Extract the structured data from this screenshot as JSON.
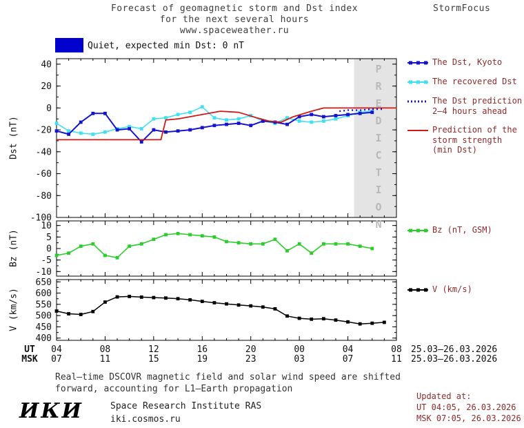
{
  "header": {
    "title_lines": [
      "Forecast of geomagnetic storm and Dst index",
      "for the next several hours",
      "www.spaceweather.ru"
    ],
    "brand": "StormFocus"
  },
  "status": {
    "label": "Quiet, expected min Dst: 0 nT",
    "swatch_color": "#0202cf"
  },
  "prediction_band": {
    "label": "PREDICTION",
    "fill": "#e4e4e4",
    "text_color": "#b9b9b9",
    "start_hour": 28.5,
    "end_hour": 32
  },
  "legend": {
    "text_color": "#8f2a2a",
    "entries": [
      {
        "id": "dst-kyoto",
        "style": "solid-squares",
        "color": "#1414cd",
        "label_lines": [
          "The Dst, Kyoto"
        ]
      },
      {
        "id": "recovered-dst",
        "style": "solid-squares",
        "color": "#3fe0f0",
        "label_lines": [
          "The recovered Dst"
        ]
      },
      {
        "id": "dst-prediction",
        "style": "dotted",
        "color": "#1414cd",
        "label_lines": [
          "The Dst prediction",
          "2–4 hours ahead"
        ]
      },
      {
        "id": "storm-strength-prediction",
        "style": "solid",
        "color": "#d01818",
        "label_lines": [
          "Prediction of the",
          "storm strength",
          "(min Dst)"
        ]
      },
      {
        "id": "bz",
        "style": "solid-squares",
        "color": "#2ccc2c",
        "label_lines": [
          "Bz (nT, GSM)"
        ]
      },
      {
        "id": "v",
        "style": "solid-squares",
        "color": "#000000",
        "label_lines": [
          "V (km/s)"
        ]
      }
    ]
  },
  "axes": {
    "dst_label": "Dst (nT)",
    "bz_label": "Bz (nT)",
    "v_label": "V (km/s)",
    "ut_row_label": "UT",
    "msk_row_label": "MSK",
    "ut_ticks": [
      "04",
      "08",
      "12",
      "16",
      "20",
      "00",
      "04",
      "08"
    ],
    "msk_ticks": [
      "07",
      "11",
      "15",
      "19",
      "23",
      "03",
      "07",
      "11"
    ],
    "ut_date_range": "25.03–26.03.2026",
    "msk_date_range": "25.03–26.03.2026"
  },
  "chart_data": [
    {
      "id": "dst",
      "type": "line",
      "ylabel": "Dst (nT)",
      "ylim": [
        -100,
        45
      ],
      "yticks": [
        40,
        20,
        0,
        -20,
        -40,
        -60,
        -80,
        -100
      ],
      "x_unit": "hour UT (25.03 04:00 = 4, 26.03 08:00 = 32)",
      "show_prediction_band": true,
      "series": [
        {
          "id": "recovered-dst",
          "name": "The recovered Dst",
          "color": "#3fe0f0",
          "marker": "square",
          "width": 1.6,
          "x": [
            4,
            5,
            6,
            7,
            8,
            9,
            10,
            11,
            12,
            13,
            14,
            15,
            16,
            17,
            18,
            19,
            20,
            21,
            22,
            23,
            24,
            25,
            26,
            27,
            28,
            29,
            30
          ],
          "values": [
            -14,
            -21,
            -23,
            -24,
            -22,
            -19,
            -17,
            -19,
            -10,
            -9,
            -6,
            -4,
            1,
            -9,
            -11,
            -10,
            -7,
            -12,
            -14,
            -9,
            -12,
            -13,
            -12,
            -10,
            -7,
            -4,
            -3
          ]
        },
        {
          "id": "dst-kyoto",
          "name": "The Dst, Kyoto",
          "color": "#1414cd",
          "marker": "square",
          "width": 2,
          "x": [
            4,
            5,
            6,
            7,
            8,
            9,
            10,
            11,
            12,
            13,
            14,
            15,
            16,
            17,
            18,
            19,
            20,
            21,
            22,
            23,
            24,
            25,
            26,
            27,
            28,
            29,
            30
          ],
          "values": [
            -21,
            -24,
            -13,
            -5,
            -5,
            -20,
            -19,
            -31,
            -20,
            -22,
            -21,
            -20,
            -18,
            -16,
            -15,
            -14,
            -16,
            -12,
            -13,
            -15,
            -8,
            -6,
            -8,
            -7,
            -6,
            -5,
            -4
          ]
        },
        {
          "id": "storm-strength-prediction",
          "name": "Prediction of the storm strength (min Dst)",
          "color": "#d01818",
          "width": 1.8,
          "x": [
            4,
            12.6,
            13,
            14,
            16,
            17.5,
            19,
            20.5,
            21.5,
            22.5,
            23.5,
            25,
            26,
            32
          ],
          "values": [
            -29,
            -29,
            -11,
            -10,
            -6,
            -3,
            -4,
            -9,
            -12,
            -13,
            -8,
            -3,
            0,
            0
          ]
        },
        {
          "id": "dst-prediction",
          "name": "The Dst prediction 2–4 hours ahead",
          "color": "#1414cd",
          "width": 2.4,
          "dash": "2 4",
          "x": [
            27.3,
            28,
            29,
            30,
            31
          ],
          "values": [
            -3,
            -2,
            -2,
            -1,
            -1
          ]
        }
      ]
    },
    {
      "id": "bz",
      "type": "line",
      "ylabel": "Bz (nT)",
      "ylim": [
        -12,
        12
      ],
      "yticks": [
        10,
        5,
        0,
        -5,
        -10
      ],
      "series": [
        {
          "id": "bz",
          "name": "Bz (nT, GSM)",
          "color": "#2ccc2c",
          "marker": "square",
          "width": 1.6,
          "x": [
            4,
            5,
            6,
            7,
            8,
            9,
            10,
            11,
            12,
            13,
            14,
            15,
            16,
            17,
            18,
            19,
            20,
            21,
            22,
            23,
            24,
            25,
            26,
            27,
            28,
            29,
            30
          ],
          "values": [
            -3,
            -2,
            1,
            2,
            -3,
            -4,
            1,
            2,
            4,
            6,
            6.5,
            6,
            5.5,
            5,
            3,
            2.5,
            2,
            2,
            4,
            -1,
            2,
            -2,
            2,
            2,
            2,
            1,
            0
          ]
        }
      ]
    },
    {
      "id": "v",
      "type": "line",
      "ylabel": "V (km/s)",
      "ylim": [
        390,
        660
      ],
      "yticks": [
        650,
        600,
        550,
        500,
        450,
        400
      ],
      "series": [
        {
          "id": "v",
          "name": "V (km/s)",
          "color": "#000000",
          "marker": "square",
          "width": 1.5,
          "x": [
            4,
            5,
            6,
            7,
            8,
            9,
            10,
            11,
            12,
            13,
            14,
            15,
            16,
            17,
            18,
            19,
            20,
            21,
            22,
            23,
            24,
            25,
            26,
            27,
            28,
            29,
            30,
            31
          ],
          "values": [
            520,
            508,
            505,
            518,
            560,
            583,
            585,
            582,
            580,
            578,
            575,
            570,
            563,
            557,
            552,
            547,
            543,
            538,
            530,
            498,
            488,
            484,
            486,
            480,
            472,
            463,
            466,
            470
          ]
        }
      ]
    }
  ],
  "footer": {
    "note_lines": [
      "Real–time DSCOVR magnetic field and solar wind speed are shifted",
      "forward, accounting for L1–Earth propagation"
    ],
    "updated": {
      "heading": "Updated at:",
      "lines": [
        "UT  04:05, 26.03.2026",
        "MSK 07:05, 26.03.2026"
      ],
      "color": "#8f2a2a"
    },
    "institute": {
      "logo_text": "ИКИ",
      "name": "Space Research Institute RAS",
      "site": "iki.cosmos.ru"
    }
  }
}
